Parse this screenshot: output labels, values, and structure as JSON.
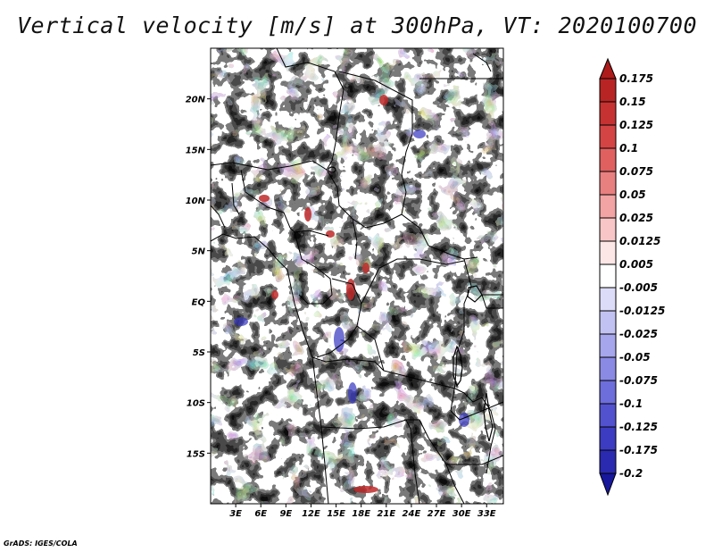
{
  "title": "Vertical velocity [m/s] at 300hPa, VT: 2020100700",
  "credit": "GrADS: IGES/COLA",
  "map": {
    "lon_range": [
      0,
      35
    ],
    "lat_range": [
      -20,
      25
    ],
    "lat_ticks": [
      {
        "value": 20,
        "label": "20N"
      },
      {
        "value": 15,
        "label": "15N"
      },
      {
        "value": 10,
        "label": "10N"
      },
      {
        "value": 5,
        "label": "5N"
      },
      {
        "value": 0,
        "label": "EQ"
      },
      {
        "value": -5,
        "label": "5S"
      },
      {
        "value": -10,
        "label": "10S"
      },
      {
        "value": -15,
        "label": "15S"
      }
    ],
    "lon_ticks": [
      {
        "value": 3,
        "label": "3E"
      },
      {
        "value": 6,
        "label": "6E"
      },
      {
        "value": 9,
        "label": "9E"
      },
      {
        "value": 12,
        "label": "12E"
      },
      {
        "value": 15,
        "label": "15E"
      },
      {
        "value": 18,
        "label": "18E"
      },
      {
        "value": 21,
        "label": "21E"
      },
      {
        "value": 24,
        "label": "24E"
      },
      {
        "value": 27,
        "label": "27E"
      },
      {
        "value": 30,
        "label": "30E"
      },
      {
        "value": 33,
        "label": "33E"
      }
    ]
  },
  "colorbar": {
    "levels": [
      "0.175",
      "0.15",
      "0.125",
      "0.1",
      "0.075",
      "0.05",
      "0.025",
      "0.0125",
      "0.005",
      "-0.005",
      "-0.0125",
      "-0.025",
      "-0.05",
      "-0.075",
      "-0.1",
      "-0.125",
      "-0.175",
      "-0.2"
    ],
    "colors": [
      "#ad1b1b",
      "#b82424",
      "#c63232",
      "#d44444",
      "#e06060",
      "#e88080",
      "#f2a3a3",
      "#f8c6c6",
      "#fde6e6",
      "#ffffff",
      "#dcdcf8",
      "#c2c2f2",
      "#a6a6ec",
      "#8a8ae4",
      "#6d6ddb",
      "#5252cf",
      "#3c3cc2",
      "#2a2ab0",
      "#18189c"
    ]
  }
}
